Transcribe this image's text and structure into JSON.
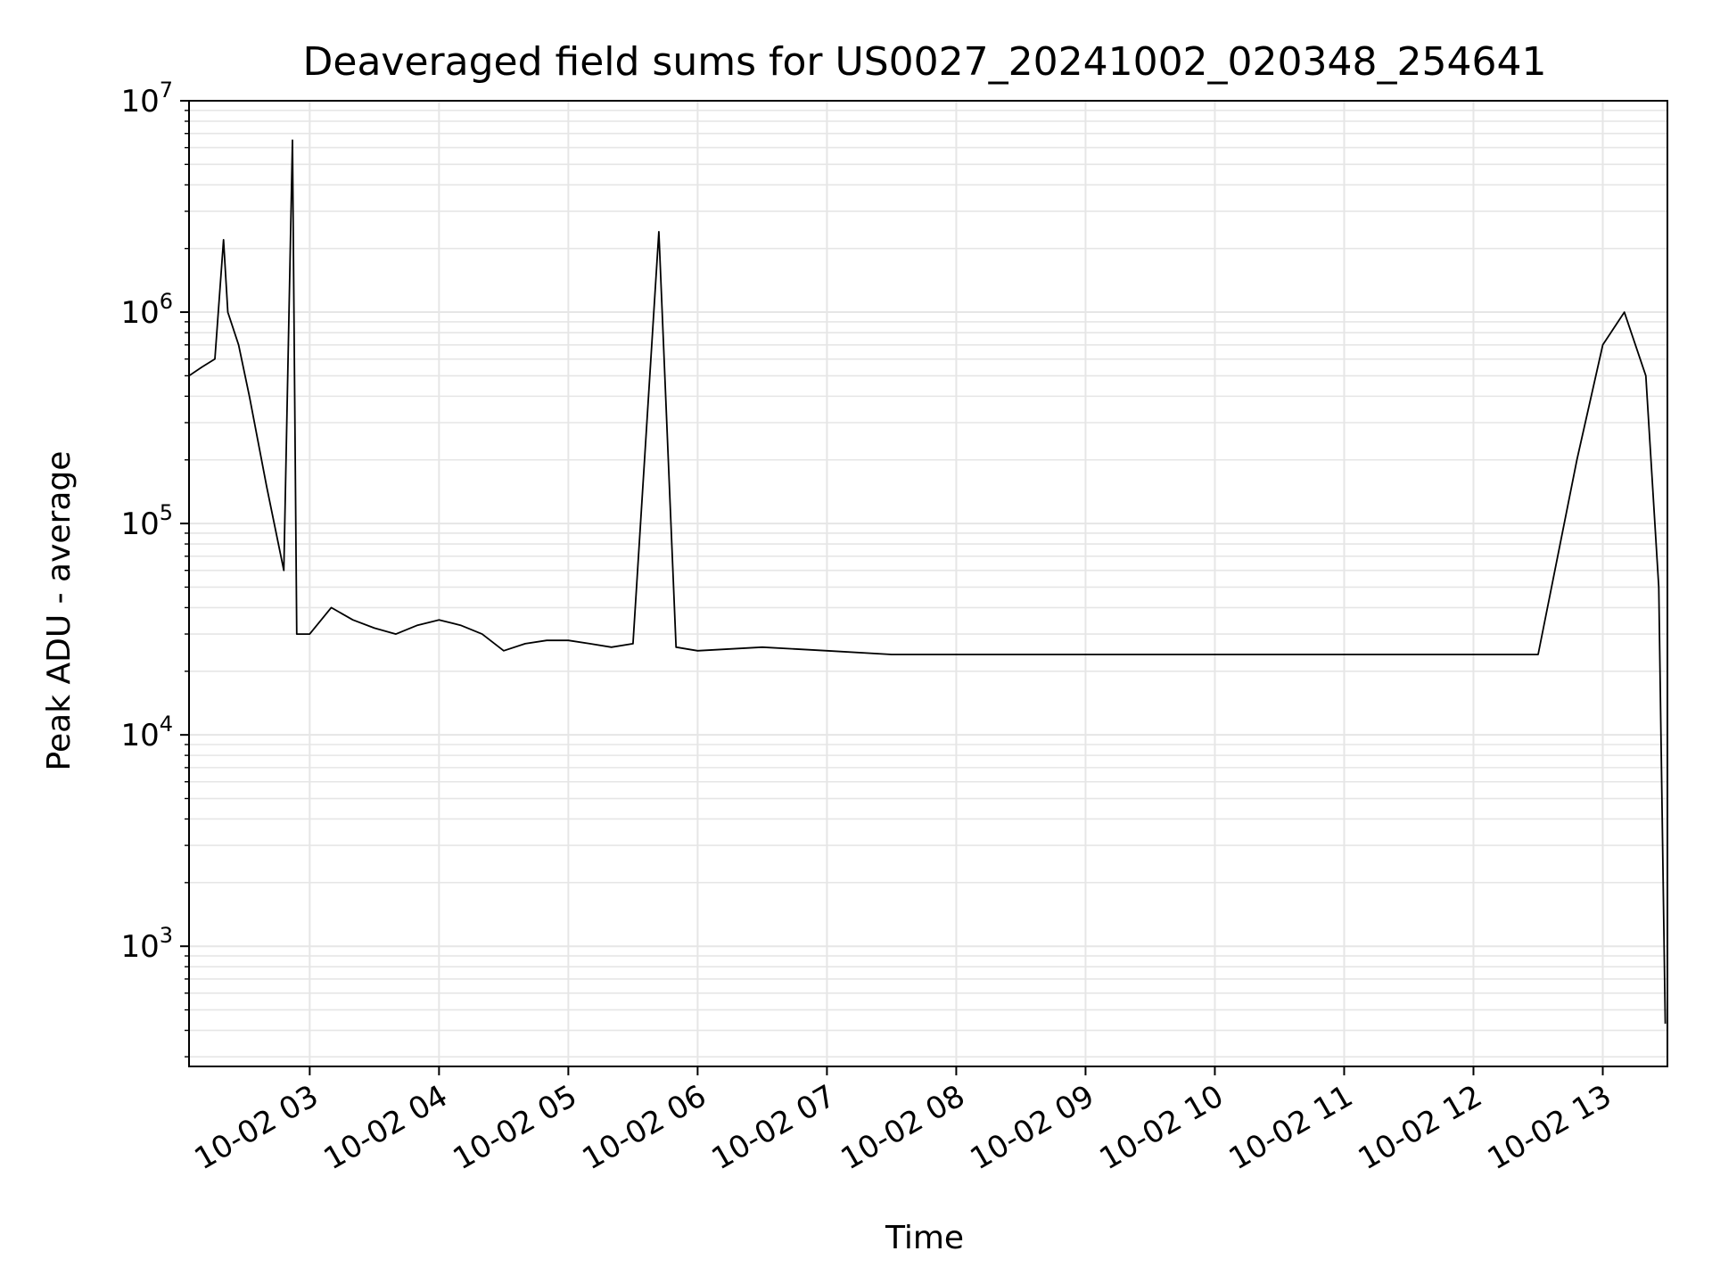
{
  "chart_data": {
    "type": "line",
    "title": "Deaveraged field sums for US0027_20241002_020348_254641",
    "xlabel": "Time",
    "ylabel": "Peak ADU - average",
    "xscale": "time",
    "yscale": "log",
    "xlim": [
      "2024-10-02 02:04",
      "2024-10-02 13:30"
    ],
    "ylim": [
      270,
      10000000
    ],
    "grid": true,
    "grid_color": "#e6e6e6",
    "line_color": "#000000",
    "x_ticks": [
      {
        "value": "2024-10-02 03:00",
        "label": "10-02 03"
      },
      {
        "value": "2024-10-02 04:00",
        "label": "10-02 04"
      },
      {
        "value": "2024-10-02 05:00",
        "label": "10-02 05"
      },
      {
        "value": "2024-10-02 06:00",
        "label": "10-02 06"
      },
      {
        "value": "2024-10-02 07:00",
        "label": "10-02 07"
      },
      {
        "value": "2024-10-02 08:00",
        "label": "10-02 08"
      },
      {
        "value": "2024-10-02 09:00",
        "label": "10-02 09"
      },
      {
        "value": "2024-10-02 10:00",
        "label": "10-02 10"
      },
      {
        "value": "2024-10-02 11:00",
        "label": "10-02 11"
      },
      {
        "value": "2024-10-02 12:00",
        "label": "10-02 12"
      },
      {
        "value": "2024-10-02 13:00",
        "label": "10-02 13"
      }
    ],
    "y_ticks": [
      {
        "value": 1000,
        "base": "10",
        "exp": "3"
      },
      {
        "value": 10000,
        "base": "10",
        "exp": "4"
      },
      {
        "value": 100000,
        "base": "10",
        "exp": "5"
      },
      {
        "value": 1000000,
        "base": "10",
        "exp": "6"
      },
      {
        "value": 10000000,
        "base": "10",
        "exp": "7"
      }
    ],
    "series": [
      {
        "x": [
          "2024-10-02 02:04",
          "2024-10-02 02:10",
          "2024-10-02 02:16",
          "2024-10-02 02:20",
          "2024-10-02 02:22",
          "2024-10-02 02:27",
          "2024-10-02 02:32",
          "2024-10-02 02:40",
          "2024-10-02 02:48",
          "2024-10-02 02:52",
          "2024-10-02 02:54",
          "2024-10-02 03:00",
          "2024-10-02 03:10",
          "2024-10-02 03:20",
          "2024-10-02 03:30",
          "2024-10-02 03:40",
          "2024-10-02 03:50",
          "2024-10-02 04:00",
          "2024-10-02 04:10",
          "2024-10-02 04:20",
          "2024-10-02 04:30",
          "2024-10-02 04:40",
          "2024-10-02 04:50",
          "2024-10-02 05:00",
          "2024-10-02 05:10",
          "2024-10-02 05:20",
          "2024-10-02 05:30",
          "2024-10-02 05:42",
          "2024-10-02 05:50",
          "2024-10-02 06:00",
          "2024-10-02 06:30",
          "2024-10-02 07:00",
          "2024-10-02 07:30",
          "2024-10-02 08:00",
          "2024-10-02 08:30",
          "2024-10-02 09:00",
          "2024-10-02 09:30",
          "2024-10-02 10:00",
          "2024-10-02 10:30",
          "2024-10-02 11:00",
          "2024-10-02 11:30",
          "2024-10-02 12:00",
          "2024-10-02 12:30",
          "2024-10-02 12:48",
          "2024-10-02 13:00",
          "2024-10-02 13:10",
          "2024-10-02 13:20",
          "2024-10-02 13:26",
          "2024-10-02 13:29"
        ],
        "y": [
          500000,
          550000,
          600000,
          2200000,
          1000000,
          700000,
          400000,
          150000,
          60000,
          6500000,
          30000,
          30000,
          40000,
          35000,
          32000,
          30000,
          33000,
          35000,
          33000,
          30000,
          25000,
          27000,
          28000,
          28000,
          27000,
          26000,
          27000,
          2400000,
          26000,
          25000,
          26000,
          25000,
          24000,
          24000,
          24000,
          24000,
          24000,
          24000,
          24000,
          24000,
          24000,
          24000,
          24000,
          200000,
          700000,
          1000000,
          500000,
          50000,
          430
        ]
      }
    ]
  }
}
